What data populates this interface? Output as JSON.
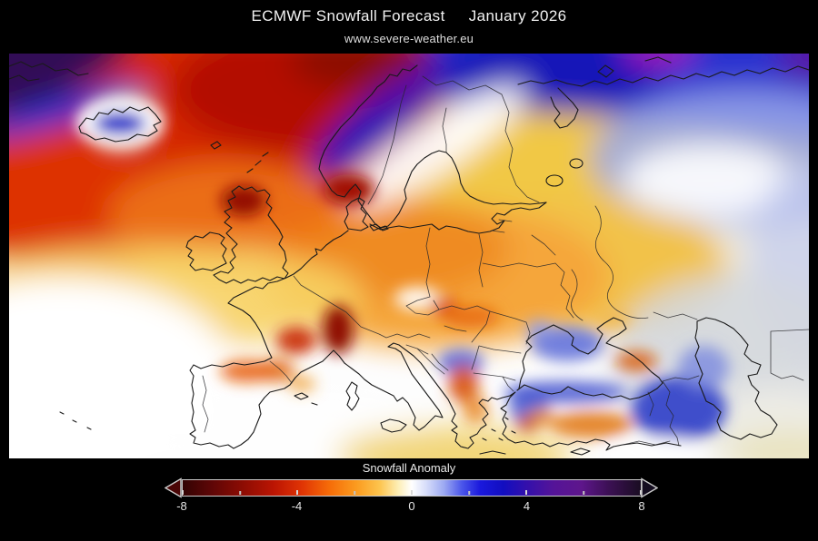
{
  "header": {
    "title_left": "ECMWF Snowfall Forecast",
    "title_right": "January 2026",
    "subtitle": "www.severe-weather.eu"
  },
  "map": {
    "region_label": "Europe"
  },
  "colorbar": {
    "label": "Snowfall Anomaly",
    "min": -8,
    "max": 8,
    "major_ticks": [
      -8,
      -4,
      0,
      4,
      8
    ],
    "minor_ticks": [
      -6,
      -2,
      2,
      6
    ],
    "stops": [
      {
        "pct": 0,
        "color": "#330303"
      },
      {
        "pct": 6,
        "color": "#5c0606"
      },
      {
        "pct": 13,
        "color": "#8c0c03"
      },
      {
        "pct": 20,
        "color": "#bc1503"
      },
      {
        "pct": 26,
        "color": "#e03404"
      },
      {
        "pct": 32,
        "color": "#f66c08"
      },
      {
        "pct": 38,
        "color": "#fb9c20"
      },
      {
        "pct": 43,
        "color": "#fdc44e"
      },
      {
        "pct": 47,
        "color": "#fdeeb4"
      },
      {
        "pct": 50,
        "color": "#ffffff"
      },
      {
        "pct": 53,
        "color": "#d9dffa"
      },
      {
        "pct": 57,
        "color": "#9daaf2"
      },
      {
        "pct": 61,
        "color": "#4a55ea"
      },
      {
        "pct": 65,
        "color": "#1a18dc"
      },
      {
        "pct": 70,
        "color": "#120ec0"
      },
      {
        "pct": 75,
        "color": "#3310ac"
      },
      {
        "pct": 81,
        "color": "#551498"
      },
      {
        "pct": 87,
        "color": "#5e168c"
      },
      {
        "pct": 93,
        "color": "#3c1054"
      },
      {
        "pct": 100,
        "color": "#1a0d22"
      }
    ],
    "left_arrow_color": "#4a0606",
    "right_arrow_color": "#150e20",
    "arrow_outline": "#c9c9c9"
  },
  "colors": {
    "background": "#000000",
    "map_base": "#ffffff",
    "coastline": "#1a1a1a",
    "border_line": "#26262a"
  }
}
